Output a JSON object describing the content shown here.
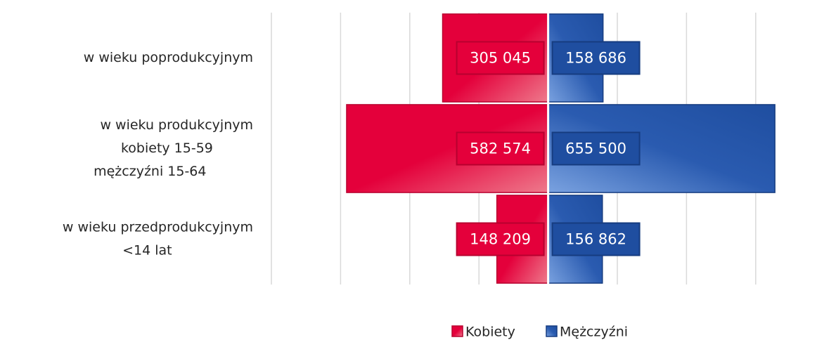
{
  "chart_data": {
    "type": "pyramid",
    "categories": [
      [
        "w wieku poprodukcyjnym"
      ],
      [
        "w wieku produkcyjnym",
        "kobiety 15-59",
        "mężczyźni 15-64"
      ],
      [
        "w wieku przedprodukcyjnym",
        "<14 lat"
      ]
    ],
    "series": [
      {
        "name": "Kobiety",
        "color": "#e4003b",
        "side": "left",
        "values": [
          305045,
          582574,
          148209
        ],
        "value_labels": [
          "305 045",
          "582 574",
          "148 209"
        ]
      },
      {
        "name": "Mężczyźni",
        "color": "#1f4ea0",
        "side": "right",
        "values": [
          158686,
          655500,
          156862
        ],
        "value_labels": [
          "158 686",
          "655 500",
          "156 862"
        ]
      }
    ],
    "xlim": [
      -800000,
      700000
    ],
    "xticks": [
      -800000,
      -600000,
      -400000,
      -200000,
      0,
      200000,
      400000,
      600000
    ],
    "grid": true,
    "legend": "bottom"
  }
}
